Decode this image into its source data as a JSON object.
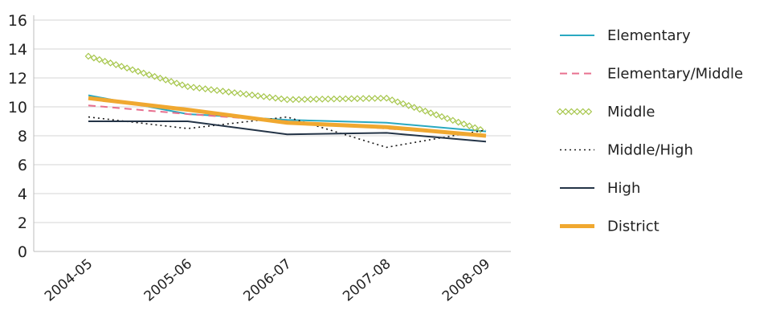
{
  "chart_data": {
    "type": "line",
    "title": "",
    "xlabel": "",
    "ylabel": "",
    "categories": [
      "2004-05",
      "2005-06",
      "2006-07",
      "2007-08",
      "2008-09"
    ],
    "ylim": [
      0,
      16
    ],
    "yticks": [
      0,
      2,
      4,
      6,
      8,
      10,
      12,
      14,
      16
    ],
    "grid": true,
    "legend_position": "right",
    "series": [
      {
        "name": "Elementary",
        "values": [
          10.8,
          9.5,
          9.1,
          8.9,
          8.3
        ],
        "color": "#2aa9c1",
        "style": "solid"
      },
      {
        "name": "Elementary/Middle",
        "values": [
          10.1,
          9.5,
          9.0,
          8.5,
          8.0
        ],
        "color": "#e8708f",
        "style": "dashed"
      },
      {
        "name": "Middle",
        "values": [
          13.5,
          11.4,
          10.5,
          10.6,
          8.3
        ],
        "color": "#a6c64b",
        "style": "diamond"
      },
      {
        "name": "Middle/High",
        "values": [
          9.3,
          8.5,
          9.3,
          7.2,
          8.4
        ],
        "color": "#1a1a1a",
        "style": "dotted"
      },
      {
        "name": "High",
        "values": [
          9.0,
          9.0,
          8.1,
          8.2,
          7.6
        ],
        "color": "#243447",
        "style": "solid"
      },
      {
        "name": "District",
        "values": [
          10.6,
          9.8,
          8.9,
          8.6,
          8.0
        ],
        "color": "#f0a830",
        "style": "thick"
      }
    ]
  }
}
